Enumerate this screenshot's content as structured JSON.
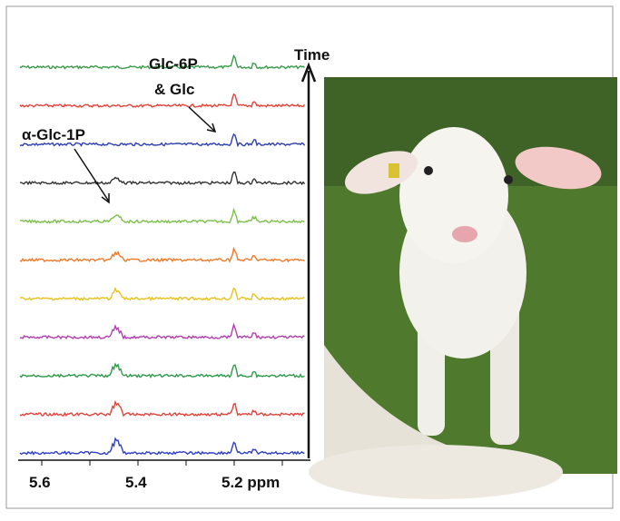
{
  "figure": {
    "axis_title": "Time",
    "tick_labels": [
      "5.6",
      "5.4",
      "5.2 ppm"
    ],
    "annotations": {
      "glc6p": "Glc-6P",
      "glc": "& Glc",
      "glc1p": "α-Glc-1P"
    },
    "trace_colors": [
      "#3a9a4a",
      "#e0433a",
      "#2f3fb0",
      "#333333",
      "#7cc04a",
      "#ef7a2a",
      "#e8c21a",
      "#b23fb0",
      "#2f9a4a",
      "#e0433a",
      "#2f3fc0"
    ]
  }
}
